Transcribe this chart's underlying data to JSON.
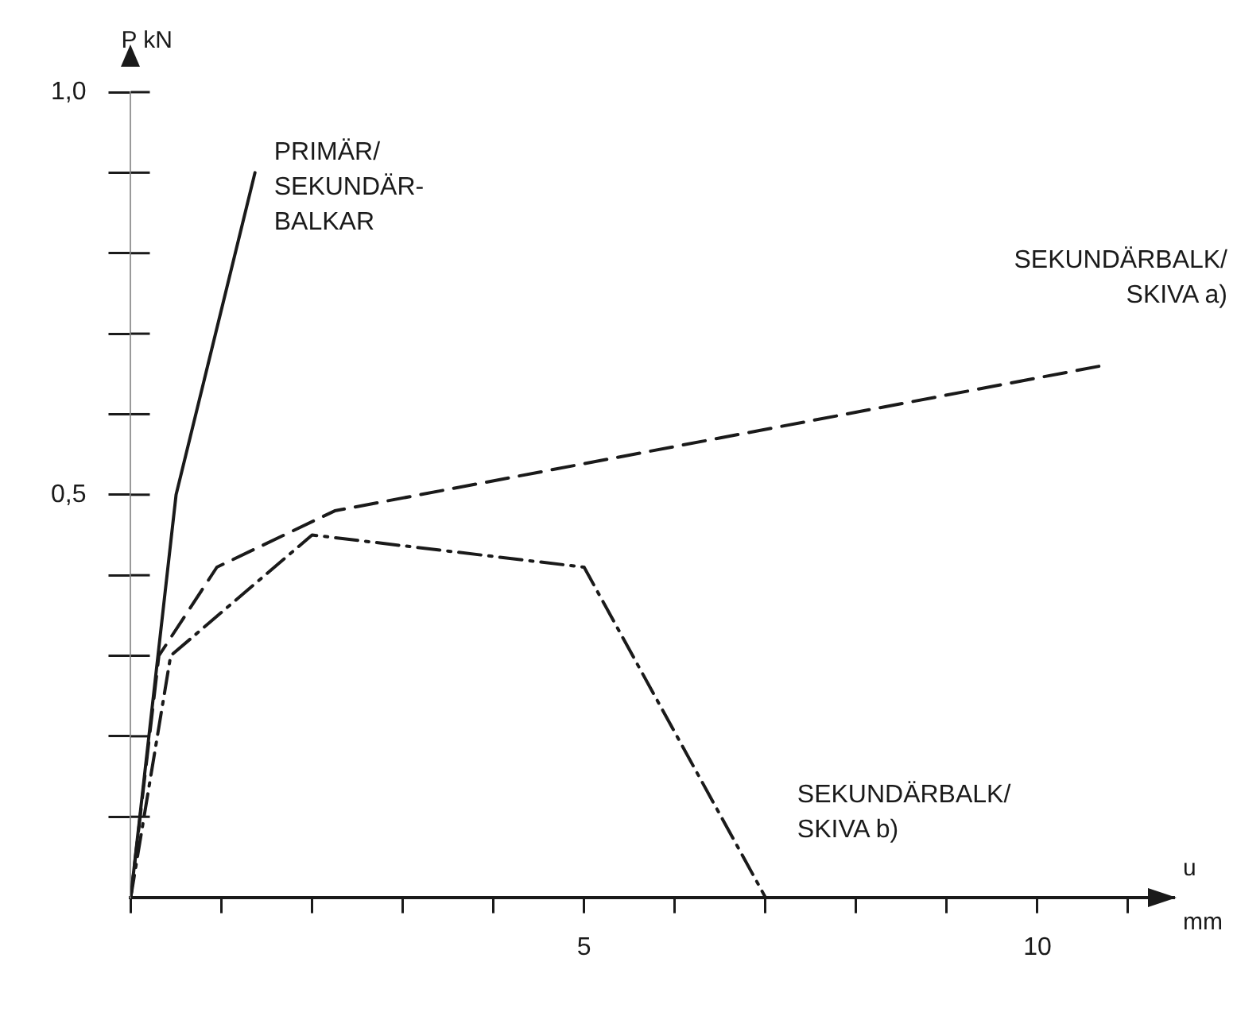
{
  "chart_data": {
    "type": "line",
    "xlabel": "u mm",
    "ylabel": "P kN",
    "xlim": [
      0,
      11.5
    ],
    "ylim": [
      0,
      1.0
    ],
    "xticks": [
      {
        "value": 0,
        "label": null
      },
      {
        "value": 1,
        "label": null
      },
      {
        "value": 2,
        "label": null
      },
      {
        "value": 3,
        "label": null
      },
      {
        "value": 4,
        "label": null
      },
      {
        "value": 5,
        "label": "5"
      },
      {
        "value": 6,
        "label": null
      },
      {
        "value": 7,
        "label": null
      },
      {
        "value": 8,
        "label": null
      },
      {
        "value": 9,
        "label": null
      },
      {
        "value": 10,
        "label": "10"
      },
      {
        "value": 11,
        "label": null
      }
    ],
    "yticks": [
      {
        "value": 0.1,
        "label": null
      },
      {
        "value": 0.2,
        "label": null
      },
      {
        "value": 0.3,
        "label": null
      },
      {
        "value": 0.4,
        "label": null
      },
      {
        "value": 0.5,
        "label": "0,5"
      },
      {
        "value": 0.6,
        "label": null
      },
      {
        "value": 0.7,
        "label": null
      },
      {
        "value": 0.8,
        "label": null
      },
      {
        "value": 0.9,
        "label": null
      },
      {
        "value": 1.0,
        "label": "1,0"
      }
    ],
    "grid": false,
    "legend": false,
    "marker": "none",
    "series": [
      {
        "name": "PRIMÄR/ SEKUNDÄR- BALKAR",
        "color": "#1a1a1a",
        "line_style": "solid",
        "x": [
          0,
          0.5,
          1.37
        ],
        "values": [
          0,
          0.5,
          0.9
        ]
      },
      {
        "name": "SEKUNDÄRBALK/ SKIVA a)",
        "color": "#1a1a1a",
        "line_style": "dashed",
        "x": [
          0,
          0.31,
          0.95,
          2.25,
          10.7
        ],
        "values": [
          0,
          0.3,
          0.41,
          0.48,
          0.66
        ]
      },
      {
        "name": "SEKUNDÄRBALK/ SKIVA b)",
        "color": "#1a1a1a",
        "line_style": "dashdot",
        "x": [
          0,
          0.44,
          2.0,
          5.0,
          7.0
        ],
        "values": [
          0,
          0.3,
          0.45,
          0.41,
          0
        ]
      }
    ]
  }
}
